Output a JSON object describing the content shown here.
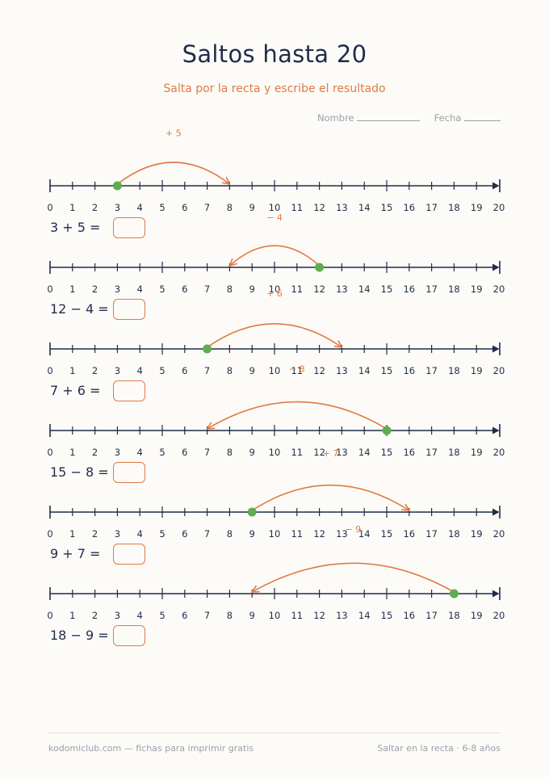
{
  "title": "Saltos hasta 20",
  "subtitle": "Salta por la recta y escribe el resultado",
  "name_label": "Nombre",
  "date_label": "Fecha",
  "number_line": {
    "min": 0,
    "max": 20
  },
  "colors": {
    "ink": "#1f2d4a",
    "accent": "#e07a45",
    "dot": "#5cae4f",
    "muted": "#9aa0ab"
  },
  "exercises": [
    {
      "start": 3,
      "end": 8,
      "jump_label": "+ 5",
      "equation": "3 + 5 ="
    },
    {
      "start": 12,
      "end": 8,
      "jump_label": "− 4",
      "equation": "12 − 4 ="
    },
    {
      "start": 7,
      "end": 13,
      "jump_label": "+ 6",
      "equation": "7 + 6 ="
    },
    {
      "start": 15,
      "end": 7,
      "jump_label": "− 8",
      "equation": "15 − 8 ="
    },
    {
      "start": 9,
      "end": 16,
      "jump_label": "+ 7",
      "equation": "9 + 7 ="
    },
    {
      "start": 18,
      "end": 9,
      "jump_label": "− 9",
      "equation": "18 − 9 ="
    }
  ],
  "footer": {
    "left": "kodomiclub.com — fichas para imprimir gratis",
    "right": "Saltar en la recta · 6-8 años"
  }
}
